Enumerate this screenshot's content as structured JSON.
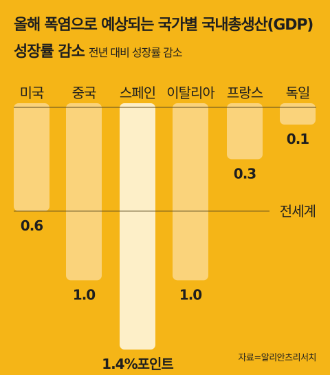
{
  "title_line1": "올해 폭염으로 예상되는 국가별 국내총생산(GDP)",
  "title_line2_bold": "성장률 감소",
  "title_line2_sub": "전년 대비 성장률 감소",
  "source": "자료=알리안츠리서치",
  "colors": {
    "background": "#F5B517",
    "bar": "#FAD37B",
    "bar_highlight": "#FDEFC8",
    "line": "#5a4a20"
  },
  "chart_data": {
    "type": "bar",
    "categories": [
      "미국",
      "중국",
      "스페인",
      "이탈리아",
      "프랑스",
      "독일"
    ],
    "values": [
      0.6,
      1.0,
      1.4,
      1.0,
      0.3,
      0.1
    ],
    "value_labels": [
      "0.6",
      "1.0",
      "1.4%포인트",
      "1.0",
      "0.3",
      "0.1"
    ],
    "highlight": "스페인",
    "reference_line": {
      "label": "전세계",
      "value": 0.6
    },
    "orientation": "downward",
    "ylim": [
      0,
      1.4
    ]
  }
}
